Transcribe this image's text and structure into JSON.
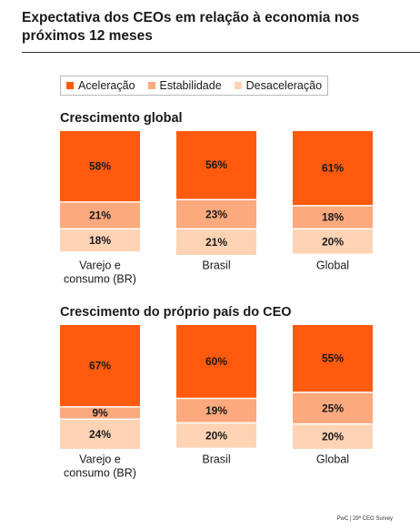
{
  "title": "Expectativa dos CEOs em relação à economia nos próximos 12 meses",
  "legend": [
    {
      "label": "Aceleração",
      "color": "#FF5A0D"
    },
    {
      "label": "Estabilidade",
      "color": "#FCA97D"
    },
    {
      "label": "Desaceleração",
      "color": "#FFD3B4"
    }
  ],
  "footer": "PwC | 29ª CEO Survey",
  "chart_data": [
    {
      "type": "bar",
      "stacked": true,
      "title": "Crescimento global",
      "categories": [
        "Varejo e consumo (BR)",
        "Brasil",
        "Global"
      ],
      "series": [
        {
          "name": "Aceleração",
          "values": [
            58,
            56,
            61
          ],
          "labels": [
            "58%",
            "56%",
            "61%"
          ]
        },
        {
          "name": "Estabilidade",
          "values": [
            21,
            23,
            18
          ],
          "labels": [
            "21%",
            "23%",
            "18%"
          ]
        },
        {
          "name": "Desaceleração",
          "values": [
            18,
            21,
            20
          ],
          "labels": [
            "18%",
            "21%",
            "20%"
          ]
        }
      ]
    },
    {
      "type": "bar",
      "stacked": true,
      "title": "Crescimento do próprio país do CEO",
      "categories": [
        "Varejo e consumo (BR)",
        "Brasil",
        "Global"
      ],
      "series": [
        {
          "name": "Aceleração",
          "values": [
            67,
            60,
            55
          ],
          "labels": [
            "67%",
            "60%",
            "55%"
          ]
        },
        {
          "name": "Estabilidade",
          "values": [
            9,
            19,
            25
          ],
          "labels": [
            "9%",
            "19%",
            "25%"
          ]
        },
        {
          "name": "Desaceleração",
          "values": [
            24,
            20,
            20
          ],
          "labels": [
            "24%",
            "20%",
            "20%"
          ]
        }
      ]
    }
  ]
}
